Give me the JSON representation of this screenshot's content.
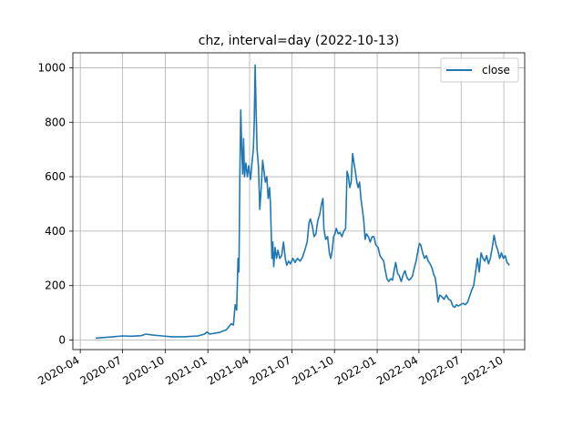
{
  "chart_data": {
    "type": "line",
    "title": "chz, interval=day (2022-10-13)",
    "xlabel": "",
    "ylabel": "",
    "grid": true,
    "legend_position": "top-right",
    "x_ticks": [
      "2020-04",
      "2020-07",
      "2020-10",
      "2021-01",
      "2021-04",
      "2021-07",
      "2021-10",
      "2022-01",
      "2022-04",
      "2022-07",
      "2022-10"
    ],
    "y_ticks": [
      0,
      200,
      400,
      600,
      800,
      1000
    ],
    "xlim": [
      "2020-03-16",
      "2022-11-15"
    ],
    "ylim": [
      -35,
      1055
    ],
    "series": [
      {
        "name": "close",
        "color": "#1f77b4",
        "points": [
          [
            "2020-05-04",
            7
          ],
          [
            "2020-05-20",
            9
          ],
          [
            "2020-06-10",
            12
          ],
          [
            "2020-07-01",
            15
          ],
          [
            "2020-07-20",
            14
          ],
          [
            "2020-08-10",
            16
          ],
          [
            "2020-08-20",
            22
          ],
          [
            "2020-09-05",
            18
          ],
          [
            "2020-09-25",
            15
          ],
          [
            "2020-10-15",
            12
          ],
          [
            "2020-11-10",
            12
          ],
          [
            "2020-12-10",
            15
          ],
          [
            "2020-12-25",
            22
          ],
          [
            "2020-12-30",
            30
          ],
          [
            "2021-01-05",
            22
          ],
          [
            "2021-01-25",
            28
          ],
          [
            "2021-02-10",
            38
          ],
          [
            "2021-02-20",
            60
          ],
          [
            "2021-02-25",
            55
          ],
          [
            "2021-03-01",
            130
          ],
          [
            "2021-03-04",
            110
          ],
          [
            "2021-03-07",
            300
          ],
          [
            "2021-03-09",
            250
          ],
          [
            "2021-03-11",
            600
          ],
          [
            "2021-03-13",
            845
          ],
          [
            "2021-03-15",
            700
          ],
          [
            "2021-03-17",
            610
          ],
          [
            "2021-03-19",
            740
          ],
          [
            "2021-03-21",
            600
          ],
          [
            "2021-03-24",
            650
          ],
          [
            "2021-03-27",
            600
          ],
          [
            "2021-03-30",
            640
          ],
          [
            "2021-04-03",
            590
          ],
          [
            "2021-04-06",
            650
          ],
          [
            "2021-04-09",
            700
          ],
          [
            "2021-04-11",
            800
          ],
          [
            "2021-04-13",
            1010
          ],
          [
            "2021-04-15",
            850
          ],
          [
            "2021-04-17",
            700
          ],
          [
            "2021-04-20",
            640
          ],
          [
            "2021-04-23",
            480
          ],
          [
            "2021-04-26",
            560
          ],
          [
            "2021-04-29",
            660
          ],
          [
            "2021-05-02",
            620
          ],
          [
            "2021-05-05",
            580
          ],
          [
            "2021-05-08",
            600
          ],
          [
            "2021-05-11",
            520
          ],
          [
            "2021-05-14",
            560
          ],
          [
            "2021-05-16",
            500
          ],
          [
            "2021-05-19",
            300
          ],
          [
            "2021-05-21",
            360
          ],
          [
            "2021-05-23",
            270
          ],
          [
            "2021-05-26",
            340
          ],
          [
            "2021-05-29",
            300
          ],
          [
            "2021-06-01",
            330
          ],
          [
            "2021-06-05",
            300
          ],
          [
            "2021-06-09",
            310
          ],
          [
            "2021-06-13",
            360
          ],
          [
            "2021-06-17",
            300
          ],
          [
            "2021-06-20",
            275
          ],
          [
            "2021-06-24",
            290
          ],
          [
            "2021-06-28",
            280
          ],
          [
            "2021-07-03",
            300
          ],
          [
            "2021-07-08",
            285
          ],
          [
            "2021-07-13",
            300
          ],
          [
            "2021-07-19",
            290
          ],
          [
            "2021-07-24",
            305
          ],
          [
            "2021-07-29",
            330
          ],
          [
            "2021-08-03",
            360
          ],
          [
            "2021-08-07",
            430
          ],
          [
            "2021-08-10",
            445
          ],
          [
            "2021-08-14",
            420
          ],
          [
            "2021-08-18",
            380
          ],
          [
            "2021-08-22",
            390
          ],
          [
            "2021-08-26",
            440
          ],
          [
            "2021-08-30",
            460
          ],
          [
            "2021-09-03",
            500
          ],
          [
            "2021-09-06",
            520
          ],
          [
            "2021-09-08",
            410
          ],
          [
            "2021-09-12",
            370
          ],
          [
            "2021-09-16",
            380
          ],
          [
            "2021-09-20",
            320
          ],
          [
            "2021-09-23",
            300
          ],
          [
            "2021-09-26",
            330
          ],
          [
            "2021-09-29",
            380
          ],
          [
            "2021-10-02",
            390
          ],
          [
            "2021-10-05",
            410
          ],
          [
            "2021-10-09",
            390
          ],
          [
            "2021-10-13",
            395
          ],
          [
            "2021-10-17",
            380
          ],
          [
            "2021-10-21",
            400
          ],
          [
            "2021-10-25",
            410
          ],
          [
            "2021-10-28",
            620
          ],
          [
            "2021-10-31",
            600
          ],
          [
            "2021-11-03",
            560
          ],
          [
            "2021-11-06",
            580
          ],
          [
            "2021-11-09",
            685
          ],
          [
            "2021-11-12",
            650
          ],
          [
            "2021-11-15",
            620
          ],
          [
            "2021-11-18",
            580
          ],
          [
            "2021-11-21",
            560
          ],
          [
            "2021-11-24",
            580
          ],
          [
            "2021-11-27",
            520
          ],
          [
            "2021-11-30",
            480
          ],
          [
            "2021-12-03",
            440
          ],
          [
            "2021-12-06",
            370
          ],
          [
            "2021-12-09",
            390
          ],
          [
            "2021-12-13",
            380
          ],
          [
            "2021-12-17",
            360
          ],
          [
            "2021-12-21",
            380
          ],
          [
            "2021-12-25",
            380
          ],
          [
            "2021-12-29",
            350
          ],
          [
            "2022-01-03",
            340
          ],
          [
            "2022-01-07",
            310
          ],
          [
            "2022-01-11",
            300
          ],
          [
            "2022-01-15",
            290
          ],
          [
            "2022-01-18",
            260
          ],
          [
            "2022-01-22",
            225
          ],
          [
            "2022-01-26",
            215
          ],
          [
            "2022-01-30",
            225
          ],
          [
            "2022-02-03",
            220
          ],
          [
            "2022-02-07",
            260
          ],
          [
            "2022-02-10",
            285
          ],
          [
            "2022-02-14",
            245
          ],
          [
            "2022-02-18",
            235
          ],
          [
            "2022-02-22",
            215
          ],
          [
            "2022-02-26",
            240
          ],
          [
            "2022-03-02",
            255
          ],
          [
            "2022-03-06",
            230
          ],
          [
            "2022-03-10",
            220
          ],
          [
            "2022-03-14",
            225
          ],
          [
            "2022-03-18",
            235
          ],
          [
            "2022-03-22",
            265
          ],
          [
            "2022-03-26",
            290
          ],
          [
            "2022-03-30",
            330
          ],
          [
            "2022-04-02",
            355
          ],
          [
            "2022-04-05",
            350
          ],
          [
            "2022-04-09",
            320
          ],
          [
            "2022-04-13",
            300
          ],
          [
            "2022-04-17",
            310
          ],
          [
            "2022-04-21",
            290
          ],
          [
            "2022-04-25",
            280
          ],
          [
            "2022-04-29",
            265
          ],
          [
            "2022-05-03",
            240
          ],
          [
            "2022-05-06",
            230
          ],
          [
            "2022-05-09",
            195
          ],
          [
            "2022-05-12",
            140
          ],
          [
            "2022-05-16",
            165
          ],
          [
            "2022-05-20",
            160
          ],
          [
            "2022-05-25",
            150
          ],
          [
            "2022-05-30",
            165
          ],
          [
            "2022-06-04",
            150
          ],
          [
            "2022-06-09",
            145
          ],
          [
            "2022-06-13",
            125
          ],
          [
            "2022-06-17",
            120
          ],
          [
            "2022-06-21",
            130
          ],
          [
            "2022-06-25",
            125
          ],
          [
            "2022-06-30",
            130
          ],
          [
            "2022-07-05",
            135
          ],
          [
            "2022-07-10",
            130
          ],
          [
            "2022-07-15",
            140
          ],
          [
            "2022-07-19",
            160
          ],
          [
            "2022-07-23",
            180
          ],
          [
            "2022-07-28",
            200
          ],
          [
            "2022-08-02",
            260
          ],
          [
            "2022-08-05",
            300
          ],
          [
            "2022-08-09",
            250
          ],
          [
            "2022-08-13",
            320
          ],
          [
            "2022-08-17",
            300
          ],
          [
            "2022-08-21",
            290
          ],
          [
            "2022-08-25",
            310
          ],
          [
            "2022-08-29",
            280
          ],
          [
            "2022-09-02",
            300
          ],
          [
            "2022-09-06",
            340
          ],
          [
            "2022-09-10",
            385
          ],
          [
            "2022-09-14",
            350
          ],
          [
            "2022-09-18",
            330
          ],
          [
            "2022-09-22",
            300
          ],
          [
            "2022-09-26",
            320
          ],
          [
            "2022-09-30",
            300
          ],
          [
            "2022-10-04",
            310
          ],
          [
            "2022-10-08",
            285
          ],
          [
            "2022-10-13",
            275
          ]
        ]
      }
    ]
  }
}
